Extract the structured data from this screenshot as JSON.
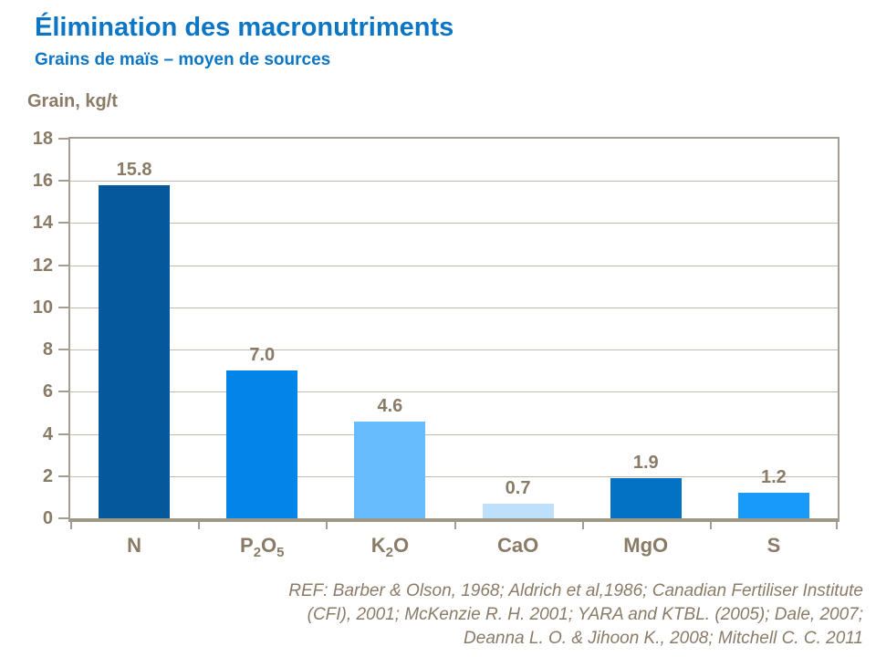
{
  "header": {
    "title": "Élimination des macronutriments",
    "subtitle": "Grains de maïs – moyen de sources"
  },
  "chart_data": {
    "type": "bar",
    "title": "Élimination des macronutriments",
    "subtitle": "Grains de maïs – moyen de sources",
    "ylabel": "Grain, kg/t",
    "xlabel": "",
    "categories": [
      "N",
      "P₂O₅",
      "K₂O",
      "CaO",
      "MgO",
      "S"
    ],
    "values": [
      15.8,
      7.0,
      4.6,
      0.7,
      1.9,
      1.2
    ],
    "value_labels": [
      "15.8",
      "7.0",
      "4.6",
      "0.7",
      "1.9",
      "1.2"
    ],
    "bar_colors": [
      "#05589b",
      "#0284e8",
      "#67bcfd",
      "#bee0fb",
      "#0372c4",
      "#189afb"
    ],
    "ylim": [
      0,
      18
    ],
    "yticks": [
      0,
      2,
      4,
      6,
      8,
      10,
      12,
      14,
      16,
      18
    ],
    "grid": true,
    "legend": false
  },
  "footer": {
    "lines": [
      "REF: Barber & Olson, 1968; Aldrich et al,1986; Canadian Fertiliser Institute",
      "(CFI), 2001; McKenzie R. H. 2001; YARA and KTBL. (2005); Dale, 2007;",
      "Deanna L. O. & Jihoon K.,  2008; Mitchell C. C. 2011"
    ]
  },
  "colors": {
    "title_blue": "#0d76c4",
    "text_brown": "#8a7b67",
    "gridline": "#c3bbae",
    "axis_frame": "#a49e91",
    "background": "#ffffff"
  }
}
